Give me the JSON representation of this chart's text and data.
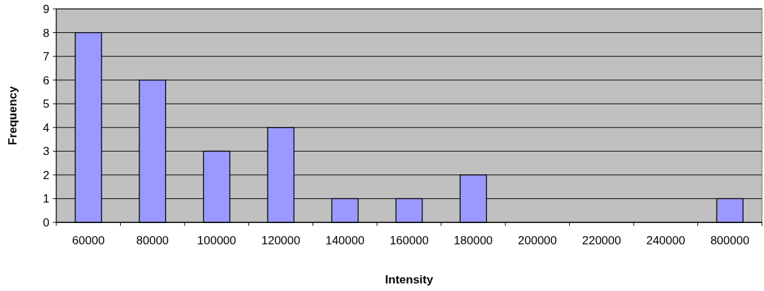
{
  "chart_data": {
    "type": "bar",
    "xlabel": "Intensity",
    "ylabel": "Frequency",
    "categories": [
      "60000",
      "80000",
      "100000",
      "120000",
      "140000",
      "160000",
      "180000",
      "200000",
      "220000",
      "240000",
      "800000"
    ],
    "values": [
      8,
      6,
      3,
      4,
      1,
      1,
      2,
      0,
      0,
      0,
      1
    ],
    "color": "#9999ff",
    "ylim": [
      0,
      9
    ],
    "yticks": [
      0,
      1,
      2,
      3,
      4,
      5,
      6,
      7,
      8,
      9
    ],
    "grid": "y"
  }
}
